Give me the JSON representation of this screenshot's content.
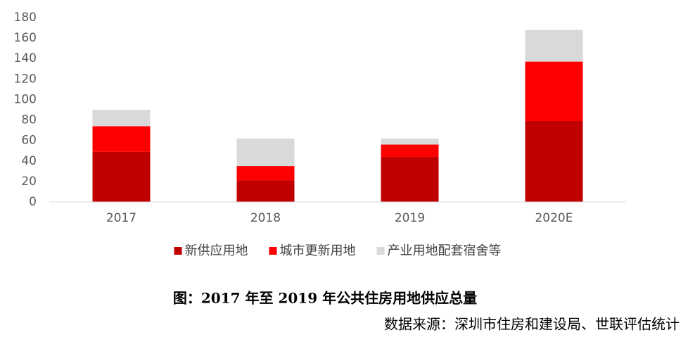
{
  "chart_data": {
    "type": "bar",
    "stacked": true,
    "categories": [
      "2017",
      "2018",
      "2019",
      "2020E"
    ],
    "series": [
      {
        "name": "新供应用地",
        "color": "#c00000",
        "values": [
          49,
          21,
          44,
          79
        ]
      },
      {
        "name": "城市更新用地",
        "color": "#ff0000",
        "values": [
          25,
          14,
          12,
          58
        ]
      },
      {
        "name": "产业用地配套宿舍等",
        "color": "#d9d9d9",
        "values": [
          16,
          27,
          6,
          31
        ]
      }
    ],
    "ylim": [
      0,
      180
    ],
    "yticks": [
      0,
      20,
      40,
      60,
      80,
      100,
      120,
      140,
      160,
      180
    ],
    "grid": false,
    "legend": "bottom",
    "caption": "图：2017 年至 2019 年公共住房用地供应总量",
    "source": "数据来源：深圳市住房和建设局、世联评估统计"
  }
}
